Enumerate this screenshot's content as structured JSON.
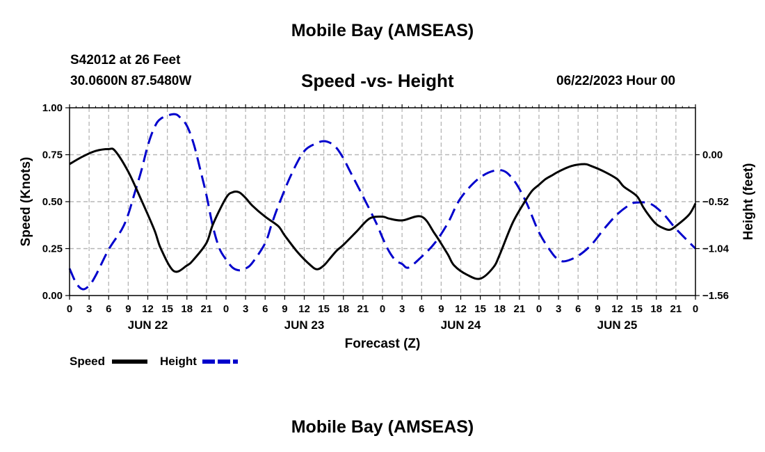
{
  "header": {
    "title": "Mobile Bay (AMSEAS)",
    "station": "S42012 at 26 Feet",
    "coords": "30.0600N  87.5480W",
    "subtitle": "Speed -vs- Height",
    "date": "06/22/2023 Hour 00"
  },
  "footer": {
    "title": "Mobile Bay (AMSEAS)"
  },
  "colors": {
    "speed": "#000000",
    "height": "#0000cc",
    "grid": "#b4b4b4"
  },
  "chart_data": {
    "type": "line",
    "title": "Speed -vs- Height",
    "xlabel": "Forecast (Z)",
    "ylabel": "Speed (Knots)",
    "y2label": "Height (feet)",
    "xlim": [
      0,
      96
    ],
    "ylim": [
      0,
      1
    ],
    "y2lim": [
      -1.56,
      0.52
    ],
    "grid": true,
    "legend_position": "bottom-left",
    "x_tick_labels": [
      "0",
      "3",
      "6",
      "9",
      "12",
      "15",
      "18",
      "21",
      "0",
      "3",
      "6",
      "9",
      "12",
      "15",
      "18",
      "21",
      "0",
      "3",
      "6",
      "9",
      "12",
      "15",
      "18",
      "21",
      "0",
      "3",
      "6",
      "9",
      "12",
      "15",
      "18",
      "21",
      "0"
    ],
    "day_labels": [
      "JUN 22",
      "JUN 23",
      "JUN 24",
      "JUN 25"
    ],
    "y_ticks": [
      0,
      0.25,
      0.5,
      0.75,
      1.0
    ],
    "y_tick_labels": [
      "0.00",
      "0.25",
      "0.50",
      "0.75",
      "1.00"
    ],
    "y2_ticks": [
      -1.56,
      -1.04,
      -0.52,
      0.0
    ],
    "y2_tick_labels": [
      "−1.56",
      "−1.04",
      "−0.52",
      "0.00"
    ],
    "series": [
      {
        "name": "Speed",
        "axis": "left",
        "x": [
          0,
          2,
          4,
          6,
          7,
          9,
          11,
          13,
          14,
          16,
          18,
          19,
          21,
          22,
          24,
          25,
          26,
          27,
          28,
          30,
          32,
          33,
          35,
          37,
          38,
          39,
          40,
          41,
          42,
          44,
          46,
          48,
          49,
          51,
          54,
          56,
          58,
          59,
          61,
          63,
          65,
          66,
          68,
          70,
          71,
          72,
          73,
          74,
          75,
          77,
          79,
          80,
          82,
          84,
          85,
          87,
          88,
          89,
          90,
          91,
          92,
          93,
          95,
          96
        ],
        "y": [
          0.7,
          0.74,
          0.77,
          0.78,
          0.77,
          0.66,
          0.51,
          0.35,
          0.25,
          0.13,
          0.16,
          0.19,
          0.28,
          0.38,
          0.52,
          0.55,
          0.55,
          0.52,
          0.48,
          0.42,
          0.37,
          0.32,
          0.23,
          0.16,
          0.14,
          0.16,
          0.2,
          0.24,
          0.27,
          0.34,
          0.41,
          0.42,
          0.41,
          0.4,
          0.42,
          0.33,
          0.22,
          0.16,
          0.11,
          0.09,
          0.15,
          0.22,
          0.39,
          0.51,
          0.56,
          0.59,
          0.62,
          0.64,
          0.66,
          0.69,
          0.7,
          0.69,
          0.66,
          0.62,
          0.58,
          0.53,
          0.47,
          0.42,
          0.38,
          0.36,
          0.35,
          0.37,
          0.43,
          0.49
        ]
      },
      {
        "name": "Height",
        "axis": "right",
        "x": [
          0,
          1,
          2,
          3,
          4,
          6,
          8,
          9,
          10,
          11,
          12,
          13,
          14,
          16,
          17,
          18,
          19,
          20,
          21,
          22,
          23,
          24,
          25,
          26,
          27,
          28,
          30,
          31,
          32,
          34,
          36,
          38,
          39,
          40,
          41,
          42,
          43,
          45,
          47,
          48,
          49,
          50,
          51,
          52,
          54,
          56,
          58,
          60,
          63,
          66,
          68,
          70,
          72,
          74,
          75,
          76,
          78,
          80,
          82,
          84,
          86,
          87,
          89,
          91,
          93,
          96
        ],
        "y": [
          -1.26,
          -1.42,
          -1.49,
          -1.45,
          -1.34,
          -1.05,
          -0.83,
          -0.66,
          -0.42,
          -0.18,
          0.1,
          0.3,
          0.4,
          0.45,
          0.41,
          0.32,
          0.13,
          -0.15,
          -0.45,
          -0.8,
          -1.04,
          -1.16,
          -1.25,
          -1.28,
          -1.26,
          -1.2,
          -0.98,
          -0.77,
          -0.57,
          -0.22,
          0.04,
          0.13,
          0.15,
          0.13,
          0.07,
          -0.04,
          -0.18,
          -0.46,
          -0.75,
          -0.92,
          -1.07,
          -1.17,
          -1.21,
          -1.25,
          -1.13,
          -0.98,
          -0.76,
          -0.48,
          -0.25,
          -0.17,
          -0.27,
          -0.52,
          -0.86,
          -1.09,
          -1.16,
          -1.18,
          -1.12,
          -1.0,
          -0.82,
          -0.66,
          -0.55,
          -0.53,
          -0.54,
          -0.65,
          -0.82,
          -1.04
        ]
      }
    ]
  }
}
